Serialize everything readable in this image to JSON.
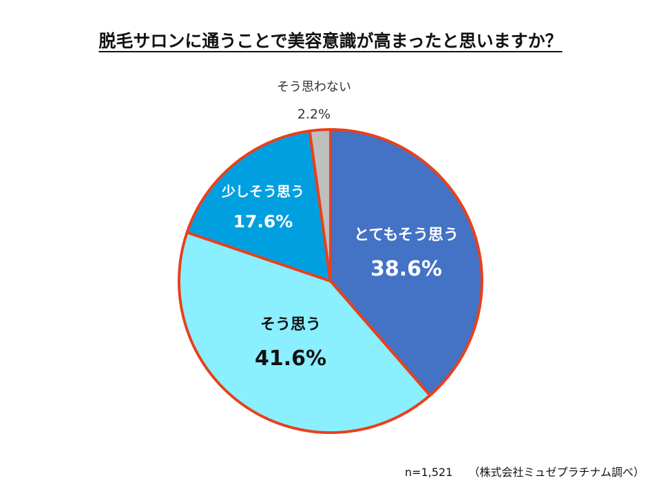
{
  "title": "脱毛サロンに通うことで美容意識が高まったと思いますか？",
  "footer": {
    "sample": "n=1,521",
    "source": "（株式会社ミュゼプラチナム調べ）"
  },
  "chart_data": {
    "type": "pie",
    "title": "脱毛サロンに通うことで美容意識が高まったと思いますか？",
    "slices": [
      {
        "label": "とてもそう思う",
        "value": 38.6,
        "value_label": "38.6%",
        "color": "#4472C4",
        "text_color": "#ffffff"
      },
      {
        "label": "そう思う",
        "value": 41.6,
        "value_label": "41.6%",
        "color": "#8AEFFF",
        "text_color": "#111111"
      },
      {
        "label": "少しそう思う",
        "value": 17.6,
        "value_label": "17.6%",
        "color": "#00A0E0",
        "text_color": "#ffffff"
      },
      {
        "label": "そう思わない",
        "value": 2.2,
        "value_label": "2.2%",
        "color": "#BFBFBF",
        "text_color": "#333333"
      }
    ],
    "start_angle": "12 o'clock, clockwise",
    "outline_color": "#E8401C"
  }
}
